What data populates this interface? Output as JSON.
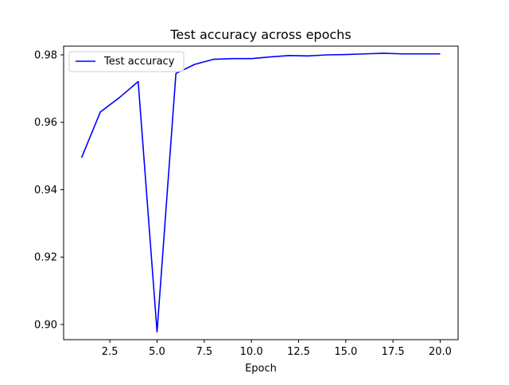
{
  "chart_data": {
    "type": "line",
    "title": "Test accuracy across epochs",
    "xlabel": "Epoch",
    "ylabel": "",
    "xlim": [
      0.05,
      20.95
    ],
    "ylim": [
      0.8955,
      0.9826
    ],
    "xticks": [
      2.5,
      5.0,
      7.5,
      10.0,
      12.5,
      15.0,
      17.5,
      20.0
    ],
    "xtick_labels": [
      "2.5",
      "5.0",
      "7.5",
      "10.0",
      "12.5",
      "15.0",
      "17.5",
      "20.0"
    ],
    "yticks": [
      0.9,
      0.92,
      0.94,
      0.96,
      0.98
    ],
    "ytick_labels": [
      "0.90",
      "0.92",
      "0.94",
      "0.96",
      "0.98"
    ],
    "grid": false,
    "legend_position": "upper-left",
    "series": [
      {
        "name": "Test accuracy",
        "color": "#0000ff",
        "x": [
          1,
          2,
          3,
          4,
          5,
          6,
          7,
          8,
          9,
          10,
          11,
          12,
          13,
          14,
          15,
          16,
          17,
          18,
          19,
          20
        ],
        "values": [
          0.9495,
          0.9631,
          0.9673,
          0.9721,
          0.8978,
          0.9745,
          0.9772,
          0.9787,
          0.9789,
          0.9789,
          0.9794,
          0.9798,
          0.9797,
          0.98,
          0.9801,
          0.9803,
          0.9805,
          0.9803,
          0.9803,
          0.9803
        ]
      }
    ]
  }
}
